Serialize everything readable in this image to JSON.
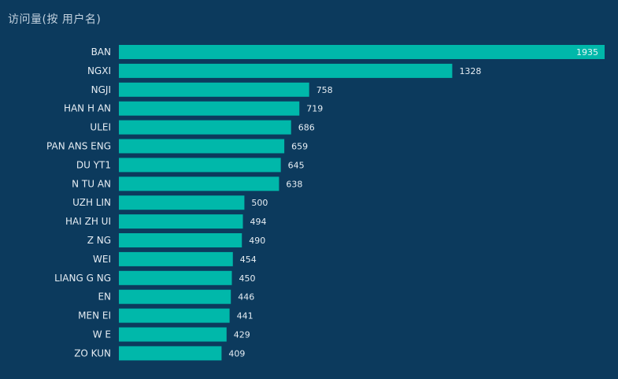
{
  "title": "访问量(按 用户名)",
  "colors": {
    "background": "#0c3a5d",
    "bar": "#00b8aa",
    "text": "#e6edf3"
  },
  "chart_data": {
    "type": "bar",
    "orientation": "horizontal",
    "title": "访问量(按 用户名)",
    "xlabel": "",
    "ylabel": "",
    "xlim": [
      0,
      1935
    ],
    "grid": false,
    "legend": "none",
    "categories": [
      "BAN",
      "NGXI",
      "NGJI",
      "HAN H AN",
      "ULEI",
      "PAN ANS ENG",
      "DU YT1",
      "N TU AN",
      "UZH LIN",
      "HAI ZH UI",
      "Z NG",
      "WEI",
      "LIANG G NG",
      "EN",
      "MEN EI",
      "W E",
      "ZO KUN"
    ],
    "values": [
      1935,
      1328,
      758,
      719,
      686,
      659,
      645,
      638,
      500,
      494,
      490,
      454,
      450,
      446,
      441,
      429,
      409
    ]
  }
}
